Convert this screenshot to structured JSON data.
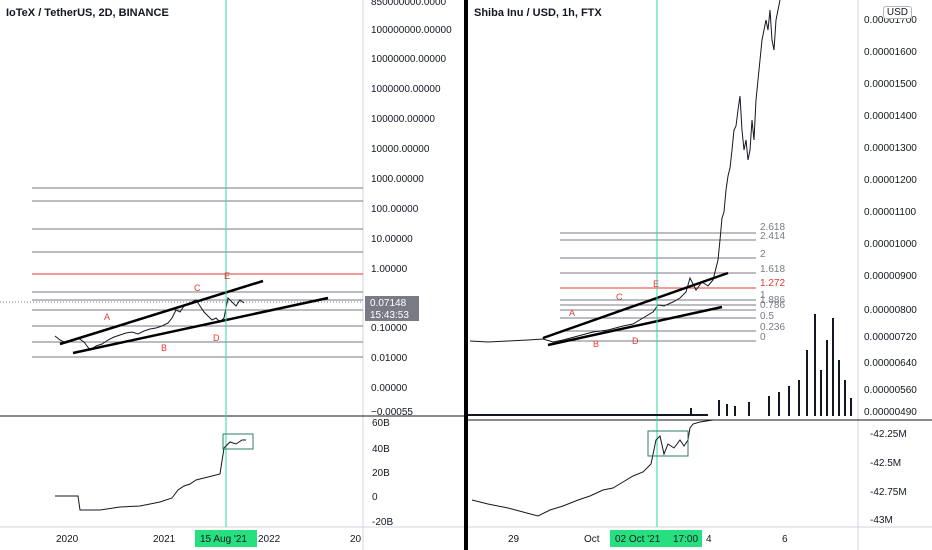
{
  "left": {
    "title": "IoTeX / TetherUS, 2D, BINANCE",
    "price_scale": [
      "850000000.0000",
      "100000000.00000",
      "10000000.00000",
      "1000000.00000",
      "100000.00000",
      "10000.00000",
      "1000.00000",
      "100.00000",
      "10.00000",
      "1.00000",
      "0.10000",
      "0.01000",
      "0.00000",
      "−0.00055"
    ],
    "price_label": "0.07148",
    "countdown": "15:43:53",
    "indicator_scale": [
      "60B",
      "40B",
      "20B",
      "0",
      "-20B"
    ],
    "time_labels": [
      "2020",
      "2021",
      "2022",
      "20"
    ],
    "crosshair_date": "15 Aug '21",
    "points": [
      "A",
      "B",
      "C",
      "D",
      "E"
    ]
  },
  "right": {
    "title": "Shiba Inu / USD, 1h, FTX",
    "currency": "USD",
    "price_scale": [
      "0.00001700",
      "0.00001600",
      "0.00001500",
      "0.00001400",
      "0.00001300",
      "0.00001200",
      "0.00001100",
      "0.00001000",
      "0.00000900",
      "0.00000800",
      "0.00000720",
      "0.00000640",
      "0.00000560",
      "0.00000490"
    ],
    "indicator_scale": [
      "-42.25M",
      "-42.5M",
      "-42.75M",
      "-43M"
    ],
    "time_labels": [
      "29",
      "Oct",
      "4",
      "6"
    ],
    "crosshair_date": "02 Oct '21",
    "crosshair_time": "17:00",
    "fib_levels": [
      "2.618",
      "2.414",
      "2",
      "1.618",
      "1.272",
      "1.886",
      "0.786",
      "0.5",
      "0.236",
      "0",
      "1"
    ],
    "points": [
      "A",
      "B",
      "C",
      "D",
      "E"
    ]
  },
  "colors": {
    "crosshair": "#2bd9a0",
    "fib_red": "#e53935",
    "label_red": "#e53935",
    "candle": "#131722",
    "price_badge": "#787b86",
    "date_badge": "#26e07f"
  }
}
